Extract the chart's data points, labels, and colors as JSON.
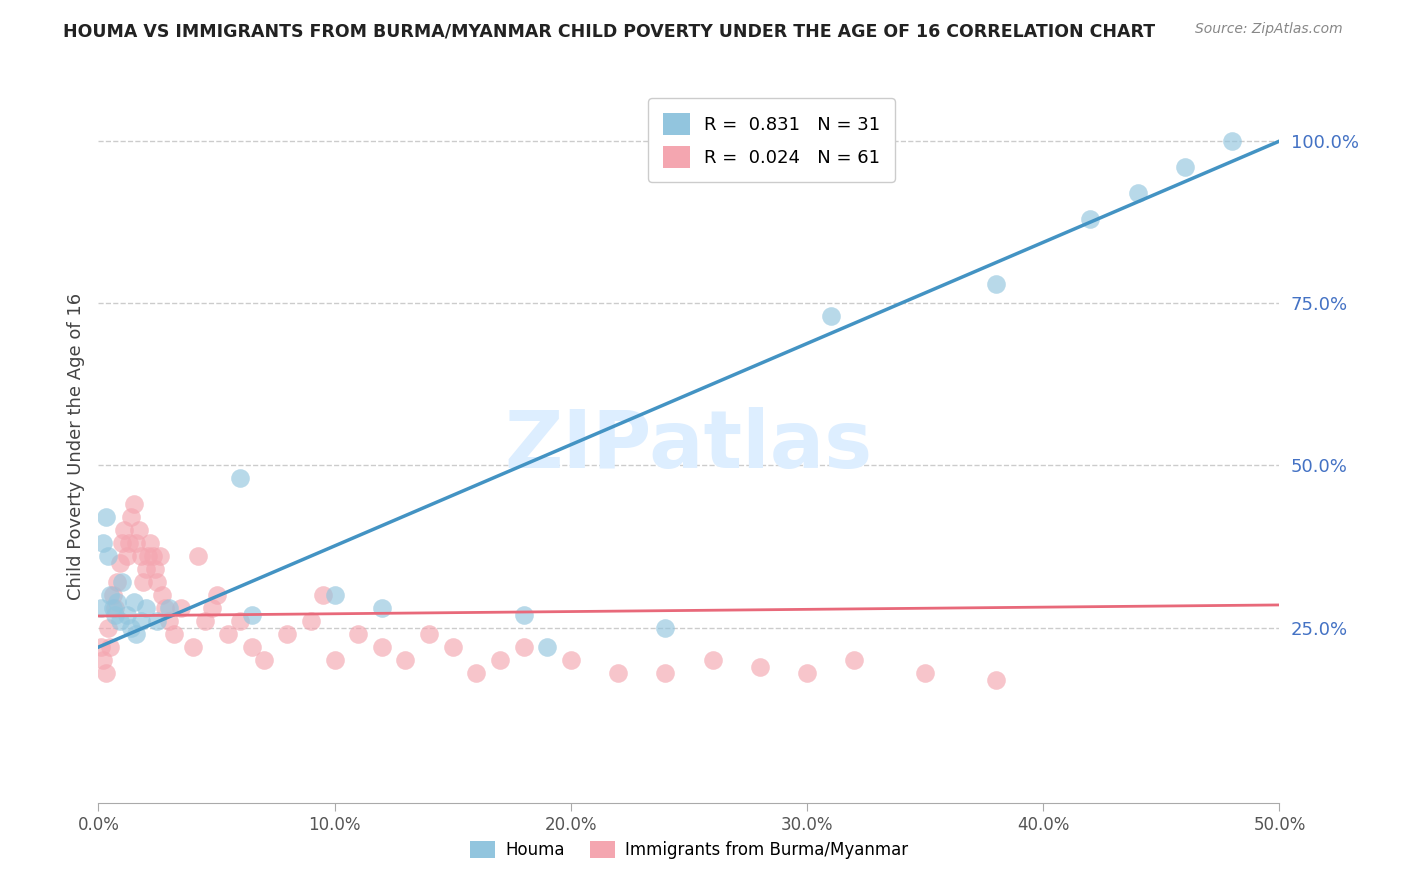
{
  "title": "HOUMA VS IMMIGRANTS FROM BURMA/MYANMAR CHILD POVERTY UNDER THE AGE OF 16 CORRELATION CHART",
  "source": "Source: ZipAtlas.com",
  "ylabel": "Child Poverty Under the Age of 16",
  "xlim": [
    0.0,
    0.5
  ],
  "ylim": [
    -0.02,
    1.08
  ],
  "yticks": [
    0.25,
    0.5,
    0.75,
    1.0
  ],
  "ytick_labels": [
    "25.0%",
    "50.0%",
    "75.0%",
    "100.0%"
  ],
  "xticks": [
    0.0,
    0.1,
    0.2,
    0.3,
    0.4,
    0.5
  ],
  "xtick_labels": [
    "0.0%",
    "10.0%",
    "20.0%",
    "30.0%",
    "40.0%",
    "50.0%"
  ],
  "houma_R": 0.831,
  "houma_N": 31,
  "burma_R": 0.024,
  "burma_N": 61,
  "houma_color": "#92c5de",
  "burma_color": "#f4a6b0",
  "houma_trend_color": "#4393c3",
  "burma_trend_color": "#e8697a",
  "watermark": "ZIPatlas",
  "watermark_color": "#ddeeff",
  "houma_x": [
    0.001,
    0.002,
    0.003,
    0.004,
    0.005,
    0.006,
    0.007,
    0.008,
    0.009,
    0.01,
    0.012,
    0.014,
    0.015,
    0.016,
    0.018,
    0.02,
    0.025,
    0.03,
    0.06,
    0.065,
    0.1,
    0.12,
    0.18,
    0.19,
    0.24,
    0.31,
    0.38,
    0.42,
    0.44,
    0.46,
    0.48
  ],
  "houma_y": [
    0.28,
    0.38,
    0.42,
    0.36,
    0.3,
    0.28,
    0.27,
    0.29,
    0.26,
    0.32,
    0.27,
    0.25,
    0.29,
    0.24,
    0.26,
    0.28,
    0.26,
    0.28,
    0.48,
    0.27,
    0.3,
    0.28,
    0.27,
    0.22,
    0.25,
    0.73,
    0.78,
    0.88,
    0.92,
    0.96,
    1.0
  ],
  "burma_x": [
    0.001,
    0.002,
    0.003,
    0.004,
    0.005,
    0.006,
    0.007,
    0.008,
    0.009,
    0.01,
    0.011,
    0.012,
    0.013,
    0.014,
    0.015,
    0.016,
    0.017,
    0.018,
    0.019,
    0.02,
    0.021,
    0.022,
    0.023,
    0.024,
    0.025,
    0.026,
    0.027,
    0.028,
    0.03,
    0.032,
    0.035,
    0.04,
    0.042,
    0.045,
    0.048,
    0.05,
    0.055,
    0.06,
    0.065,
    0.07,
    0.08,
    0.09,
    0.095,
    0.1,
    0.11,
    0.12,
    0.13,
    0.14,
    0.15,
    0.16,
    0.17,
    0.18,
    0.2,
    0.22,
    0.24,
    0.26,
    0.28,
    0.3,
    0.32,
    0.35,
    0.38
  ],
  "burma_y": [
    0.22,
    0.2,
    0.18,
    0.25,
    0.22,
    0.3,
    0.28,
    0.32,
    0.35,
    0.38,
    0.4,
    0.36,
    0.38,
    0.42,
    0.44,
    0.38,
    0.4,
    0.36,
    0.32,
    0.34,
    0.36,
    0.38,
    0.36,
    0.34,
    0.32,
    0.36,
    0.3,
    0.28,
    0.26,
    0.24,
    0.28,
    0.22,
    0.36,
    0.26,
    0.28,
    0.3,
    0.24,
    0.26,
    0.22,
    0.2,
    0.24,
    0.26,
    0.3,
    0.2,
    0.24,
    0.22,
    0.2,
    0.24,
    0.22,
    0.18,
    0.2,
    0.22,
    0.2,
    0.18,
    0.18,
    0.2,
    0.19,
    0.18,
    0.2,
    0.18,
    0.17
  ],
  "houma_trend_x0": 0.0,
  "houma_trend_x1": 0.5,
  "houma_trend_y0": 0.22,
  "houma_trend_y1": 1.0,
  "burma_trend_x0": 0.0,
  "burma_trend_x1": 0.5,
  "burma_trend_y0": 0.268,
  "burma_trend_y1": 0.285
}
